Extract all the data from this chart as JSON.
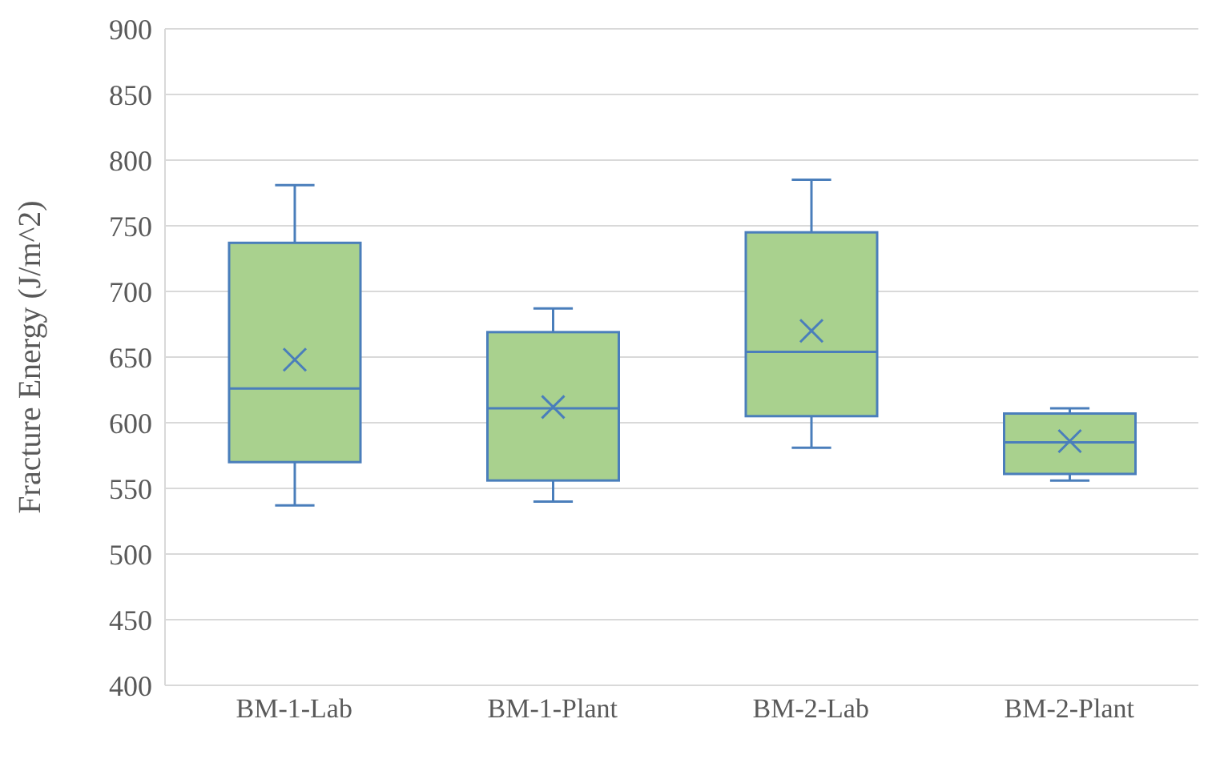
{
  "chart_data": {
    "type": "box",
    "ylabel": "Fracture Energy (J/m^2)",
    "categories": [
      "BM-1-Lab",
      "BM-1-Plant",
      "BM-2-Lab",
      "BM-2-Plant"
    ],
    "boxes": [
      {
        "low": 537,
        "q1": 570,
        "median": 626,
        "q3": 737,
        "high": 781,
        "mean": 648
      },
      {
        "low": 540,
        "q1": 556,
        "median": 611,
        "q3": 669,
        "high": 687,
        "mean": 612
      },
      {
        "low": 581,
        "q1": 605,
        "median": 654,
        "q3": 745,
        "high": 785,
        "mean": 670
      },
      {
        "low": 556,
        "q1": 561,
        "median": 585,
        "q3": 607,
        "high": 611,
        "mean": 586
      }
    ],
    "color": "#a9d18e",
    "ylim": [
      400,
      900
    ],
    "yticks": [
      400,
      450,
      500,
      550,
      600,
      650,
      700,
      750,
      800,
      850,
      900
    ],
    "grid": "y"
  }
}
